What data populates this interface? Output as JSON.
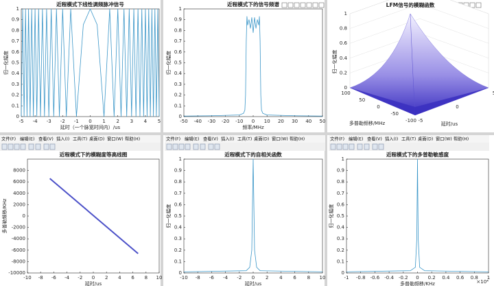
{
  "menu": [
    "文件(F)",
    "编辑(E)",
    "查看(V)",
    "插入(I)",
    "工具(T)",
    "桌面(D)",
    "窗口(W)",
    "帮助(H)"
  ],
  "chart_data": {
    "charts": [
      {
        "type": "line",
        "title": "近程模式下线性调频脉冲信号",
        "xlabel": "延时（一个脉宽时间内）/us",
        "ylabel": "归一化幅度",
        "x": [
          -5,
          -4.899,
          -4.796,
          -4.69,
          -4.583,
          -4.472,
          -4.359,
          -4.243,
          -4.123,
          -4,
          -3.873,
          -3.742,
          -3.606,
          -3.464,
          -3.317,
          -3.162,
          -3,
          -2.828,
          -2.646,
          -2.449,
          -2.236,
          -2,
          -1.732,
          -1.414,
          -1,
          -0.707,
          -0.5,
          0,
          0.5,
          0.707,
          1,
          1.414,
          1.732,
          2,
          2.236,
          2.449,
          2.646,
          2.828,
          3,
          3.162,
          3.317,
          3.464,
          3.606,
          3.742,
          3.873,
          4,
          4.123,
          4.243,
          4.359,
          4.472,
          4.583,
          4.69,
          4.796,
          4.899,
          5
        ],
        "series": [
          {
            "color": "#3a96c8",
            "values": [
              0,
              1,
              0,
              1,
              0,
              1,
              0,
              1,
              0,
              1,
              0,
              1,
              0,
              1,
              0,
              1,
              0,
              1,
              0,
              1,
              0,
              1,
              0,
              1,
              0,
              0.5,
              0.854,
              1,
              0.854,
              0.5,
              0,
              1,
              0,
              1,
              0,
              1,
              0,
              1,
              0,
              1,
              0,
              1,
              0,
              1,
              0,
              1,
              0,
              1,
              0,
              1,
              0,
              1,
              0,
              1,
              0
            ]
          }
        ],
        "xlim": [
          -5,
          5
        ],
        "xticks": [
          -5,
          -4,
          -3,
          -2,
          -1,
          0,
          1,
          2,
          3,
          4,
          5
        ],
        "ylim": [
          0,
          1
        ],
        "yticks": [
          0,
          0.1,
          0.2,
          0.3,
          0.4,
          0.5,
          0.6,
          0.7,
          0.8,
          0.9,
          1
        ]
      },
      {
        "type": "line",
        "title": "近程模式下的信号频谱",
        "xlabel": "频率/MHz",
        "ylabel": "归一化幅度",
        "x": [
          -50,
          -30,
          -10,
          -7,
          -6,
          -5.5,
          -5,
          -4.5,
          -4,
          -3,
          -2,
          -1,
          0,
          1,
          2,
          3,
          4,
          4.5,
          5,
          5.5,
          6,
          7,
          10,
          30,
          50
        ],
        "series": [
          {
            "color": "#3a96c8",
            "values": [
              0.005,
              0.008,
              0.015,
              0.03,
              0.06,
              0.2,
              0.7,
              0.93,
              0.85,
              0.9,
              0.82,
              0.92,
              0.78,
              0.92,
              0.82,
              0.9,
              0.85,
              0.93,
              0.7,
              0.2,
              0.06,
              0.03,
              0.015,
              0.008,
              0.005
            ]
          }
        ],
        "xlim": [
          -50,
          50
        ],
        "xticks": [
          -50,
          -40,
          -30,
          -20,
          -10,
          0,
          10,
          20,
          30,
          40,
          50
        ],
        "ylim": [
          0,
          1
        ],
        "yticks": [
          0,
          0.1,
          0.2,
          0.3,
          0.4,
          0.5,
          0.6,
          0.7,
          0.8,
          0.9,
          1
        ]
      },
      {
        "type": "surface3d",
        "title": "LFM信号的模糊函数",
        "xlabel": "多普勒频移/MHz",
        "ylabel": "延时/us",
        "zlabel": "归一化幅度",
        "peak": 1,
        "color": "#3a2fc0",
        "xlim": [
          -100,
          100
        ],
        "xticks": [
          -100,
          -50,
          0,
          50,
          100
        ],
        "ylim": [
          -5,
          5
        ],
        "yticks": [
          -5,
          0,
          5
        ],
        "zlim": [
          0,
          1
        ],
        "zticks": [
          0,
          0.2,
          0.4,
          0.6,
          0.8,
          1
        ]
      },
      {
        "type": "line",
        "title": "近程模式下的模糊度等高线图",
        "xlabel": "延时/us",
        "ylabel": "多普勒频移/KHz",
        "x": [
          -6.6,
          6.8
        ],
        "series": [
          {
            "color": "#4b50c8",
            "values": [
              6600,
              -6600
            ]
          }
        ],
        "xlim": [
          -10,
          10
        ],
        "xticks": [
          -10,
          -8,
          -6,
          -4,
          -2,
          0,
          2,
          4,
          6,
          8,
          10
        ],
        "ylim": [
          -10000,
          10000
        ],
        "yticks": [
          -10000,
          -8000,
          -6000,
          -4000,
          -2000,
          0,
          2000,
          4000,
          6000,
          8000
        ]
      },
      {
        "type": "line",
        "title": "近程模式下的自相关函数",
        "xlabel": "延时/us",
        "ylabel": "归一化幅度",
        "x": [
          -10,
          -1,
          -0.5,
          -0.2,
          0,
          0.2,
          0.5,
          1,
          10
        ],
        "series": [
          {
            "color": "#3a96c8",
            "values": [
              0.01,
              0.02,
              0.05,
              0.2,
              1,
              0.2,
              0.05,
              0.02,
              0.01
            ]
          }
        ],
        "xlim": [
          -10,
          10
        ],
        "xticks": [
          -10,
          -8,
          -6,
          -4,
          -2,
          0,
          2,
          4,
          6,
          8,
          10
        ],
        "ylim": [
          0,
          1
        ],
        "yticks": [
          0,
          0.1,
          0.2,
          0.3,
          0.4,
          0.5,
          0.6,
          0.7,
          0.8,
          0.9,
          1
        ]
      },
      {
        "type": "line",
        "title": "近程模式下的多普勒敏感度",
        "xlabel": "多普勒频移/KHz",
        "ylabel": "归一化幅度",
        "x_exponent_label": "×10⁴",
        "x": [
          -1,
          -0.1,
          -0.03,
          -0.01,
          0,
          0.01,
          0.03,
          0.1,
          1
        ],
        "series": [
          {
            "color": "#3a96c8",
            "values": [
              0.01,
              0.02,
              0.05,
              0.3,
              1,
              0.3,
              0.05,
              0.02,
              0.01
            ]
          }
        ],
        "xlim": [
          -1,
          1
        ],
        "xticks": [
          -1,
          -0.8,
          -0.6,
          -0.4,
          -0.2,
          0,
          0.2,
          0.4,
          0.6,
          0.8,
          1
        ],
        "ylim": [
          0,
          1
        ],
        "yticks": [
          0,
          0.1,
          0.2,
          0.3,
          0.4,
          0.5,
          0.6,
          0.7,
          0.8,
          0.9,
          1
        ]
      }
    ]
  }
}
